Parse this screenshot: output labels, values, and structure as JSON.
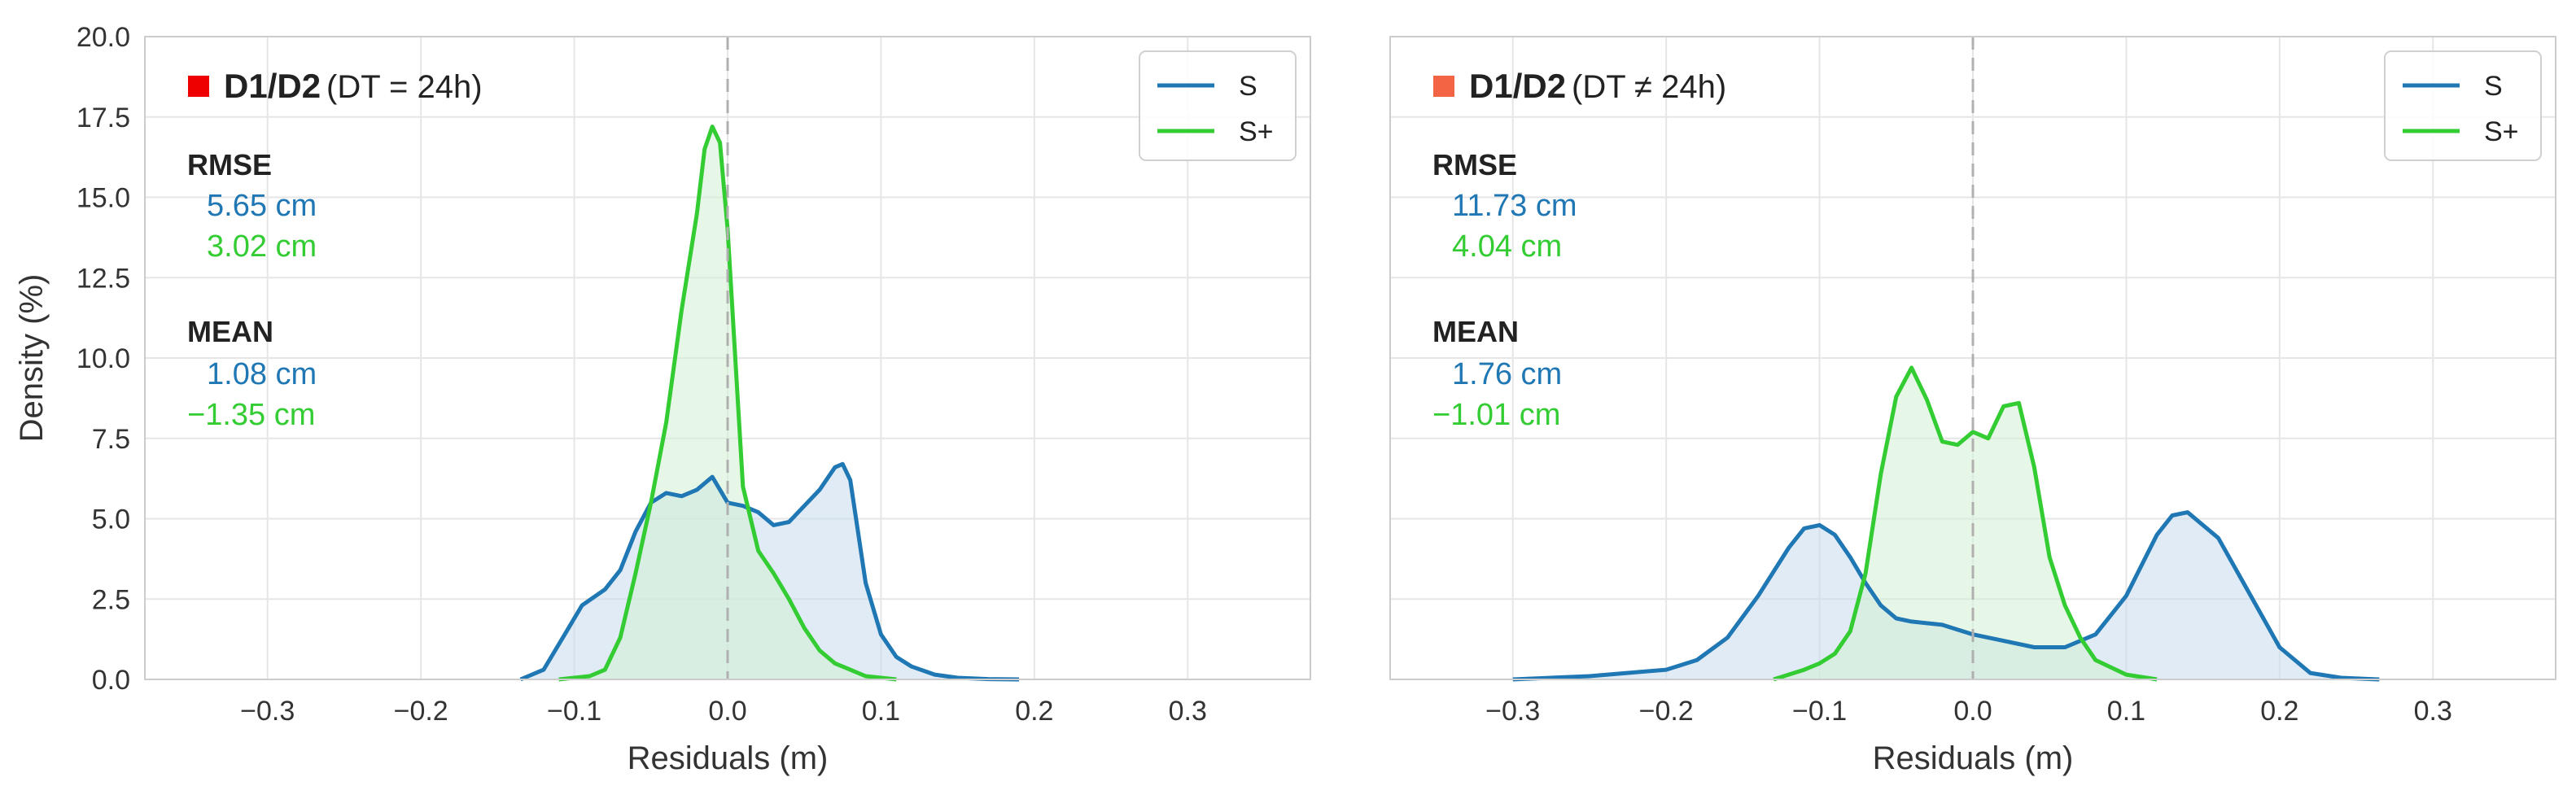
{
  "chart_data": [
    {
      "type": "line",
      "title_marker_color": "#ee0000",
      "title_bold": "D1/D2",
      "title_rest": "(DT = 24h)",
      "xlabel": "Residuals (m)",
      "ylabel": "Density (%)",
      "xlim": [
        -0.38,
        0.38
      ],
      "ylim": [
        0,
        20
      ],
      "xticks": [
        -0.3,
        -0.2,
        -0.1,
        0.0,
        0.1,
        0.2,
        0.3
      ],
      "xtick_labels": [
        "−0.3",
        "−0.2",
        "−0.1",
        "0.0",
        "0.1",
        "0.2",
        "0.3"
      ],
      "yticks": [
        0,
        2.5,
        5,
        7.5,
        10,
        12.5,
        15,
        17.5,
        20
      ],
      "ytick_labels": [
        "0.0",
        "2.5",
        "5.0",
        "7.5",
        "10.0",
        "12.5",
        "15.0",
        "17.5",
        "20.0"
      ],
      "grid": true,
      "legend_position": "top-right",
      "zero_line": true,
      "stats": {
        "rmse_label": "RMSE",
        "mean_label": "MEAN",
        "rmse_values": [
          "5.65 cm",
          "3.02 cm"
        ],
        "mean_values": [
          "1.08 cm",
          "−1.35 cm"
        ]
      },
      "series": [
        {
          "name": "S",
          "color": "#1f77b4",
          "fill": "#c6dbef",
          "x": [
            -0.135,
            -0.12,
            -0.105,
            -0.095,
            -0.08,
            -0.07,
            -0.06,
            -0.05,
            -0.04,
            -0.03,
            -0.02,
            -0.01,
            0.0,
            0.01,
            0.02,
            0.03,
            0.04,
            0.05,
            0.06,
            0.07,
            0.075,
            0.08,
            0.09,
            0.1,
            0.11,
            0.12,
            0.135,
            0.15,
            0.17,
            0.19
          ],
          "y": [
            0.0,
            0.3,
            1.5,
            2.3,
            2.8,
            3.4,
            4.6,
            5.5,
            5.8,
            5.7,
            5.9,
            6.3,
            5.5,
            5.4,
            5.2,
            4.8,
            4.9,
            5.4,
            5.9,
            6.6,
            6.7,
            6.2,
            3.0,
            1.4,
            0.7,
            0.4,
            0.15,
            0.05,
            0.01,
            0.0
          ]
        },
        {
          "name": "S+",
          "color": "#33cc33",
          "fill": "#d4f0d4",
          "x": [
            -0.11,
            -0.09,
            -0.08,
            -0.07,
            -0.06,
            -0.05,
            -0.04,
            -0.03,
            -0.02,
            -0.015,
            -0.01,
            -0.005,
            0.0,
            0.01,
            0.02,
            0.03,
            0.04,
            0.05,
            0.06,
            0.07,
            0.08,
            0.09,
            0.11
          ],
          "y": [
            0.0,
            0.1,
            0.3,
            1.3,
            3.3,
            5.5,
            8.0,
            11.5,
            14.5,
            16.5,
            17.2,
            16.7,
            14.0,
            6.0,
            4.0,
            3.3,
            2.5,
            1.6,
            0.9,
            0.5,
            0.3,
            0.1,
            0.0
          ]
        }
      ]
    },
    {
      "type": "line",
      "title_marker_color": "#f26444",
      "title_bold": "D1/D2",
      "title_rest": "(DT ≠ 24h)",
      "xlabel": "Residuals (m)",
      "ylabel": "",
      "xlim": [
        -0.38,
        0.38
      ],
      "ylim": [
        0,
        20
      ],
      "xticks": [
        -0.3,
        -0.2,
        -0.1,
        0.0,
        0.1,
        0.2,
        0.3
      ],
      "xtick_labels": [
        "−0.3",
        "−0.2",
        "−0.1",
        "0.0",
        "0.1",
        "0.2",
        "0.3"
      ],
      "yticks": [
        0,
        2.5,
        5,
        7.5,
        10,
        12.5,
        15,
        17.5,
        20
      ],
      "ytick_labels": [],
      "grid": true,
      "legend_position": "top-right",
      "zero_line": true,
      "stats": {
        "rmse_label": "RMSE",
        "mean_label": "MEAN",
        "rmse_values": [
          "11.73 cm",
          "4.04 cm"
        ],
        "mean_values": [
          "1.76 cm",
          "−1.01 cm"
        ]
      },
      "series": [
        {
          "name": "S",
          "color": "#1f77b4",
          "fill": "#c6dbef",
          "x": [
            -0.3,
            -0.25,
            -0.2,
            -0.18,
            -0.16,
            -0.14,
            -0.12,
            -0.11,
            -0.1,
            -0.09,
            -0.08,
            -0.07,
            -0.06,
            -0.05,
            -0.04,
            -0.02,
            0.0,
            0.02,
            0.04,
            0.06,
            0.08,
            0.1,
            0.12,
            0.13,
            0.14,
            0.16,
            0.18,
            0.2,
            0.22,
            0.24,
            0.265
          ],
          "y": [
            0.0,
            0.1,
            0.3,
            0.6,
            1.3,
            2.6,
            4.1,
            4.7,
            4.8,
            4.5,
            3.8,
            3.0,
            2.3,
            1.9,
            1.8,
            1.7,
            1.4,
            1.2,
            1.0,
            1.0,
            1.4,
            2.6,
            4.5,
            5.1,
            5.2,
            4.4,
            2.7,
            1.0,
            0.2,
            0.05,
            0.0
          ]
        },
        {
          "name": "S+",
          "color": "#33cc33",
          "fill": "#d4f0d4",
          "x": [
            -0.13,
            -0.11,
            -0.1,
            -0.09,
            -0.08,
            -0.07,
            -0.06,
            -0.05,
            -0.04,
            -0.03,
            -0.02,
            -0.01,
            0.0,
            0.005,
            0.01,
            0.02,
            0.03,
            0.04,
            0.05,
            0.06,
            0.07,
            0.08,
            0.1,
            0.12
          ],
          "y": [
            0.0,
            0.3,
            0.5,
            0.8,
            1.5,
            3.3,
            6.4,
            8.8,
            9.7,
            8.7,
            7.4,
            7.3,
            7.7,
            7.6,
            7.5,
            8.5,
            8.6,
            6.6,
            3.8,
            2.3,
            1.3,
            0.6,
            0.15,
            0.0
          ]
        }
      ]
    }
  ]
}
